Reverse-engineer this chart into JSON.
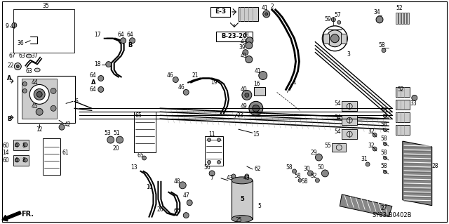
{
  "bg": "#ffffff",
  "border": "#000000",
  "diagram_code": "SY83-B0402B",
  "ref1": "E-3",
  "ref2": "B-23-20",
  "dpi": 100,
  "fig_w": 6.4,
  "fig_h": 3.19,
  "gray1": "#555555",
  "gray2": "#888888",
  "gray3": "#bbbbbb",
  "gray4": "#333333"
}
